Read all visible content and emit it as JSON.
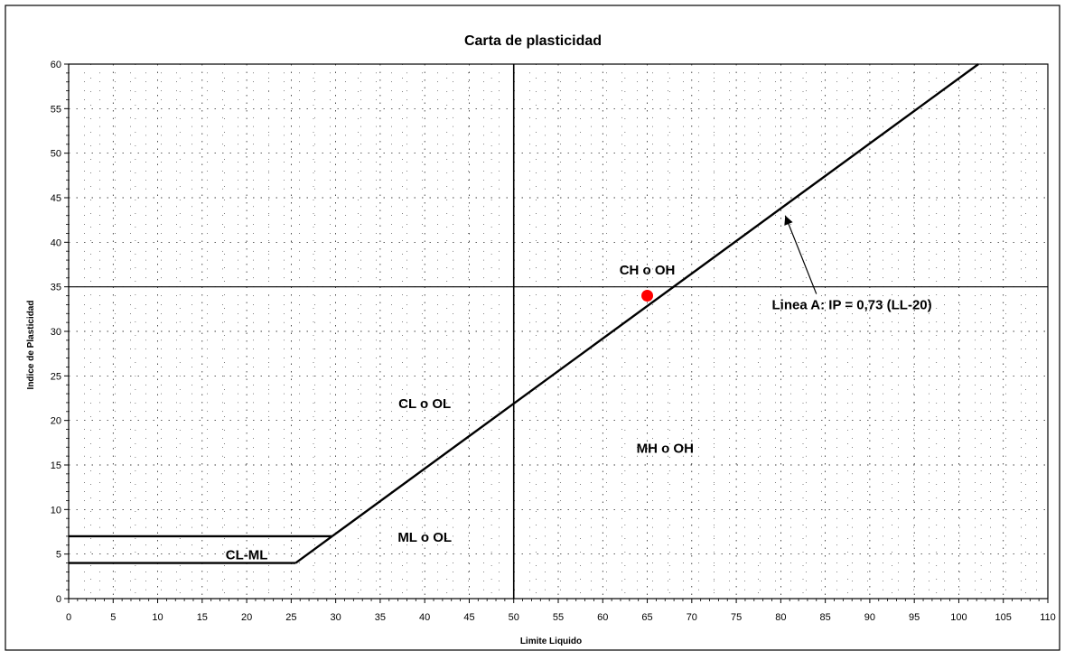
{
  "chart_data": {
    "type": "line",
    "title": "Carta de plasticidad",
    "xlabel": "Limite Liquido",
    "ylabel": "Indice de Plasticidad",
    "xlim": [
      0,
      110
    ],
    "ylim": [
      0,
      60
    ],
    "x_ticks": [
      "0",
      "5",
      "10",
      "15",
      "20",
      "25",
      "30",
      "35",
      "40",
      "45",
      "50",
      "55",
      "60",
      "65",
      "70",
      "75",
      "80",
      "85",
      "90",
      "95",
      "100",
      "105",
      "110"
    ],
    "y_ticks": [
      "0",
      "5",
      "10",
      "15",
      "20",
      "25",
      "30",
      "35",
      "40",
      "45",
      "50",
      "55",
      "60"
    ],
    "grid": "dotted",
    "series": [
      {
        "name": "Linea A: IP = 0,73 (LL-20)",
        "x": [
          29.6,
          102.2
        ],
        "y": [
          7,
          60
        ]
      },
      {
        "x": [
          0,
          29.6
        ],
        "y": [
          7,
          7
        ]
      },
      {
        "x": [
          0,
          25.5
        ],
        "y": [
          4,
          4
        ]
      },
      {
        "x": [
          25.5,
          29.6
        ],
        "y": [
          4,
          7
        ]
      }
    ],
    "reference_lines": {
      "x": [
        50
      ],
      "y": [
        35
      ]
    },
    "points": [
      {
        "x": 65,
        "y": 34,
        "color": "#ff0000"
      }
    ],
    "region_labels": [
      {
        "text": "CH o OH",
        "x": 65,
        "y": 37
      },
      {
        "text": "CL o OL",
        "x": 40,
        "y": 22
      },
      {
        "text": "MH o OH",
        "x": 67,
        "y": 17
      },
      {
        "text": "ML o OL",
        "x": 40,
        "y": 7
      },
      {
        "text": "CL-ML",
        "x": 20,
        "y": 5
      }
    ],
    "annotation": {
      "text": "Linea A: IP = 0,73 (LL-20)",
      "label_x": 79,
      "label_y": 33,
      "arrow_to": [
        80.5,
        43
      ]
    }
  }
}
